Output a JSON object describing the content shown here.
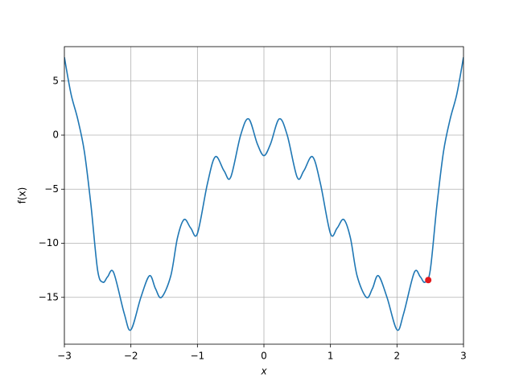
{
  "chart_data": {
    "type": "line",
    "xlabel": "x",
    "ylabel": "f(x)",
    "x": [
      -3.0,
      -2.9,
      -2.8,
      -2.7,
      -2.6,
      -2.5,
      -2.42,
      -2.35,
      -2.26,
      -2.1,
      -2.0,
      -1.85,
      -1.72,
      -1.63,
      -1.54,
      -1.4,
      -1.3,
      -1.2,
      -1.1,
      -1.0,
      -0.85,
      -0.73,
      -0.6,
      -0.5,
      -0.35,
      -0.23,
      -0.1,
      0,
      0.1,
      0.23,
      0.35,
      0.5,
      0.6,
      0.73,
      0.85,
      1.0,
      1.1,
      1.2,
      1.3,
      1.4,
      1.54,
      1.63,
      1.72,
      1.85,
      2.0,
      2.1,
      2.26,
      2.35,
      2.42,
      2.5,
      2.6,
      2.7,
      2.8,
      2.9,
      3.0
    ],
    "series": [
      {
        "color": "#1f77b4",
        "values": [
          7.2,
          3.8,
          1.5,
          -1.5,
          -6.5,
          -12.5,
          -13.6,
          -13.1,
          -12.7,
          -16.5,
          -18.0,
          -15.0,
          -13.0,
          -14.2,
          -15.0,
          -13.0,
          -9.5,
          -7.8,
          -8.6,
          -9.1,
          -4.5,
          -2.0,
          -3.3,
          -3.9,
          0.0,
          1.5,
          -0.8,
          -1.9,
          -0.8,
          1.5,
          0.0,
          -3.9,
          -3.3,
          -2.0,
          -4.5,
          -9.1,
          -8.6,
          -7.8,
          -9.5,
          -13.0,
          -15.0,
          -14.2,
          -13.0,
          -15.0,
          -18.0,
          -16.5,
          -12.7,
          -13.1,
          -13.6,
          -12.5,
          -6.5,
          -1.5,
          1.5,
          3.8,
          7.2
        ]
      }
    ],
    "points": {
      "color": "#e3191c",
      "x": [
        2.47
      ],
      "y": [
        -13.4
      ]
    },
    "xlim": [
      -3,
      3
    ],
    "ylim": [
      -19.33,
      8.18
    ],
    "xticks": [
      {
        "value": -3,
        "label": "−3"
      },
      {
        "value": -2,
        "label": "−2"
      },
      {
        "value": -1,
        "label": "−1"
      },
      0,
      1,
      2,
      3
    ],
    "yticks": [
      {
        "value": -15,
        "label": "−15"
      },
      {
        "value": -10,
        "label": "−10"
      },
      {
        "value": -5,
        "label": "−5"
      },
      0,
      5
    ],
    "grid": true
  }
}
